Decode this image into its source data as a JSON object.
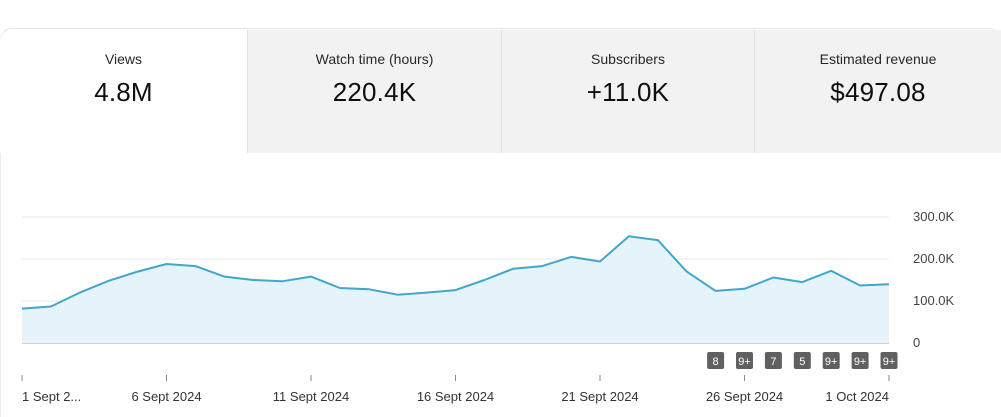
{
  "metrics": [
    {
      "label": "Views",
      "value": "4.8M",
      "active": true
    },
    {
      "label": "Watch time (hours)",
      "value": "220.4K",
      "active": false
    },
    {
      "label": "Subscribers",
      "value": "+11.0K",
      "active": false
    },
    {
      "label": "Estimated revenue",
      "value": "$497.08",
      "active": false
    }
  ],
  "colors": {
    "line": "#41a6c9",
    "area": "#e5f4fa",
    "badge": "#606060",
    "grid": "#e8e8e8",
    "baseline": "#a0a0a0"
  },
  "chart_data": {
    "type": "area",
    "y_tick_labels": [
      "0",
      "100.0K",
      "200.0K",
      "300.0K"
    ],
    "y_ticks": [
      0,
      100000,
      200000,
      300000
    ],
    "ylim": [
      0,
      300000
    ],
    "x_tick_labels": [
      "1 Sept 2...",
      "6 Sept 2024",
      "11 Sept 2024",
      "16 Sept 2024",
      "21 Sept 2024",
      "26 Sept 2024",
      "1 Oct 2024"
    ],
    "x_tick_days": [
      1,
      6,
      11,
      16,
      21,
      26,
      31
    ],
    "grid": true,
    "series": [
      {
        "x": [
          "1 Sept",
          "2 Sept",
          "3 Sept",
          "4 Sept",
          "5 Sept",
          "6 Sept",
          "7 Sept",
          "8 Sept",
          "9 Sept",
          "10 Sept",
          "11 Sept",
          "12 Sept",
          "13 Sept",
          "14 Sept",
          "15 Sept",
          "16 Sept",
          "17 Sept",
          "18 Sept",
          "19 Sept",
          "20 Sept",
          "21 Sept",
          "22 Sept",
          "23 Sept",
          "24 Sept",
          "25 Sept",
          "26 Sept",
          "27 Sept",
          "28 Sept",
          "29 Sept",
          "30 Sept",
          "1 Oct"
        ],
        "values": [
          82000,
          87000,
          120000,
          148000,
          170000,
          188000,
          183000,
          158000,
          150000,
          147000,
          158000,
          131000,
          128000,
          115000,
          120000,
          126000,
          150000,
          177000,
          183000,
          205000,
          194000,
          254000,
          245000,
          170000,
          124000,
          129000,
          156000,
          145000,
          172000,
          137000,
          140000
        ]
      }
    ],
    "badges": [
      {
        "day": 25,
        "label": "8"
      },
      {
        "day": 26,
        "label": "9+"
      },
      {
        "day": 27,
        "label": "7"
      },
      {
        "day": 28,
        "label": "5"
      },
      {
        "day": 29,
        "label": "9+"
      },
      {
        "day": 30,
        "label": "9+"
      },
      {
        "day": 31,
        "label": "9+"
      }
    ]
  }
}
